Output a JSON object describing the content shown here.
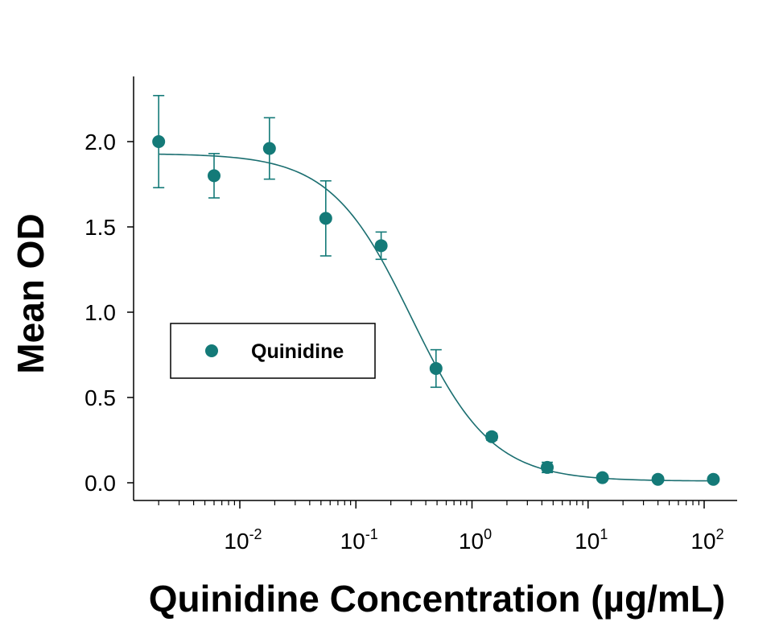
{
  "colors": {
    "series": "#147a78",
    "curve": "#1a6e70",
    "axis": "#000000"
  },
  "chart_data": {
    "type": "scatter",
    "xlabel": "Quinidine Concentration (µg/mL)",
    "ylabel": "Mean OD",
    "x_scale": "log",
    "xlim": [
      0.0012,
      200
    ],
    "ylim": [
      -0.1,
      2.4
    ],
    "y_ticks": [
      {
        "value": 0.0,
        "label": "0.0"
      },
      {
        "value": 0.5,
        "label": "0.5"
      },
      {
        "value": 1.0,
        "label": "1.0"
      },
      {
        "value": 1.5,
        "label": "1.5"
      },
      {
        "value": 2.0,
        "label": "2.0"
      }
    ],
    "x_ticks": [
      {
        "value": 0.01,
        "base": "10",
        "exp": "-2"
      },
      {
        "value": 0.1,
        "base": "10",
        "exp": "-1"
      },
      {
        "value": 1,
        "base": "10",
        "exp": "0"
      },
      {
        "value": 10,
        "base": "10",
        "exp": "1"
      },
      {
        "value": 100,
        "base": "10",
        "exp": "2"
      }
    ],
    "legend": {
      "position": "middle-left"
    },
    "series": [
      {
        "name": "Quinidine",
        "points": [
          {
            "x": 0.002,
            "y": 2.0,
            "err": 0.27
          },
          {
            "x": 0.006,
            "y": 1.8,
            "err": 0.13
          },
          {
            "x": 0.018,
            "y": 1.96,
            "err": 0.18
          },
          {
            "x": 0.055,
            "y": 1.55,
            "err": 0.22
          },
          {
            "x": 0.165,
            "y": 1.39,
            "err": 0.08
          },
          {
            "x": 0.49,
            "y": 0.67,
            "err": 0.11
          },
          {
            "x": 1.48,
            "y": 0.27,
            "err": 0.02
          },
          {
            "x": 4.45,
            "y": 0.09,
            "err": 0.03
          },
          {
            "x": 13.3,
            "y": 0.03,
            "err": 0.01
          },
          {
            "x": 40,
            "y": 0.02,
            "err": 0.0
          },
          {
            "x": 120,
            "y": 0.02,
            "err": 0.0
          }
        ],
        "fit": {
          "type": "4PL",
          "top": 1.93,
          "bottom": 0.01,
          "ec50": 0.3,
          "hill": 1.25
        }
      }
    ]
  }
}
